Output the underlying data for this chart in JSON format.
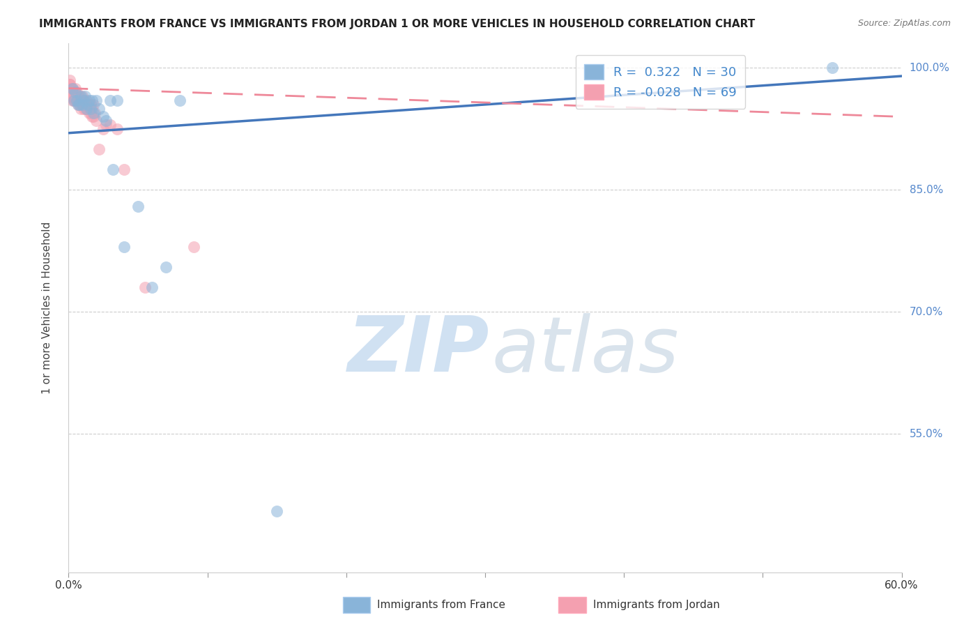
{
  "title": "IMMIGRANTS FROM FRANCE VS IMMIGRANTS FROM JORDAN 1 OR MORE VEHICLES IN HOUSEHOLD CORRELATION CHART",
  "source": "Source: ZipAtlas.com",
  "ylabel": "1 or more Vehicles in Household",
  "xlim": [
    0.0,
    0.6
  ],
  "ylim": [
    0.38,
    1.03
  ],
  "ytick_positions": [
    0.55,
    0.7,
    0.85,
    1.0
  ],
  "ytick_labels": [
    "55.0%",
    "70.0%",
    "85.0%",
    "100.0%"
  ],
  "france_R": 0.322,
  "france_N": 30,
  "jordan_R": -0.028,
  "jordan_N": 69,
  "france_color": "#89B4D9",
  "jordan_color": "#F4A0B0",
  "france_line_color": "#4477BB",
  "jordan_line_color": "#EE8899",
  "france_x": [
    0.003,
    0.004,
    0.005,
    0.006,
    0.007,
    0.008,
    0.009,
    0.01,
    0.011,
    0.012,
    0.013,
    0.014,
    0.015,
    0.016,
    0.017,
    0.018,
    0.02,
    0.022,
    0.025,
    0.027,
    0.03,
    0.032,
    0.035,
    0.04,
    0.05,
    0.06,
    0.07,
    0.08,
    0.15,
    0.55
  ],
  "france_y": [
    0.975,
    0.96,
    0.97,
    0.96,
    0.955,
    0.955,
    0.965,
    0.955,
    0.96,
    0.965,
    0.95,
    0.955,
    0.96,
    0.95,
    0.96,
    0.945,
    0.96,
    0.95,
    0.94,
    0.935,
    0.96,
    0.875,
    0.96,
    0.78,
    0.83,
    0.73,
    0.755,
    0.96,
    0.455,
    1.0
  ],
  "jordan_x": [
    0.001,
    0.001,
    0.001,
    0.001,
    0.001,
    0.001,
    0.001,
    0.001,
    0.001,
    0.001,
    0.001,
    0.002,
    0.002,
    0.002,
    0.002,
    0.002,
    0.003,
    0.003,
    0.003,
    0.003,
    0.003,
    0.004,
    0.004,
    0.004,
    0.004,
    0.005,
    0.005,
    0.005,
    0.005,
    0.005,
    0.006,
    0.006,
    0.006,
    0.007,
    0.007,
    0.007,
    0.008,
    0.008,
    0.008,
    0.009,
    0.009,
    0.01,
    0.01,
    0.01,
    0.011,
    0.011,
    0.012,
    0.012,
    0.013,
    0.013,
    0.014,
    0.015,
    0.015,
    0.016,
    0.016,
    0.017,
    0.017,
    0.018,
    0.018,
    0.019,
    0.02,
    0.022,
    0.025,
    0.027,
    0.03,
    0.035,
    0.04,
    0.055,
    0.09
  ],
  "jordan_y": [
    0.975,
    0.98,
    0.985,
    0.97,
    0.975,
    0.98,
    0.965,
    0.97,
    0.975,
    0.965,
    0.975,
    0.97,
    0.975,
    0.965,
    0.975,
    0.97,
    0.965,
    0.97,
    0.975,
    0.96,
    0.965,
    0.965,
    0.97,
    0.96,
    0.97,
    0.96,
    0.965,
    0.975,
    0.96,
    0.97,
    0.96,
    0.965,
    0.97,
    0.955,
    0.965,
    0.96,
    0.955,
    0.965,
    0.96,
    0.95,
    0.96,
    0.955,
    0.965,
    0.96,
    0.95,
    0.96,
    0.95,
    0.955,
    0.95,
    0.96,
    0.95,
    0.945,
    0.955,
    0.945,
    0.955,
    0.94,
    0.95,
    0.94,
    0.955,
    0.945,
    0.935,
    0.9,
    0.925,
    0.93,
    0.93,
    0.925,
    0.875,
    0.73,
    0.78
  ],
  "france_trend_x": [
    0.0,
    0.6
  ],
  "france_trend_y": [
    0.92,
    0.99
  ],
  "jordan_trend_x": [
    0.0,
    0.6
  ],
  "jordan_trend_y": [
    0.975,
    0.94
  ]
}
